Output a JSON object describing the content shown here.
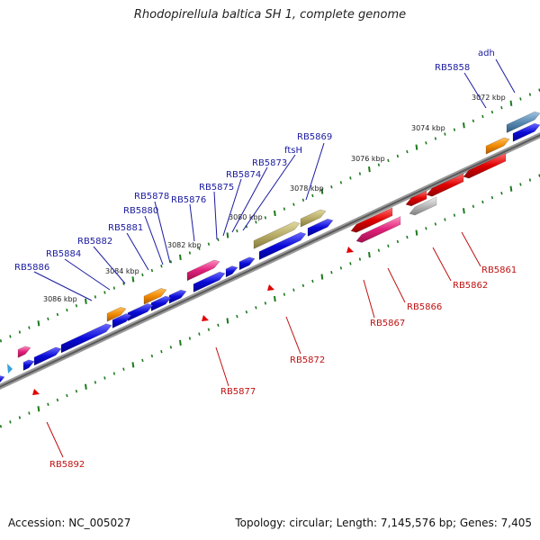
{
  "title": "Rhodopirellula baltica SH 1, complete genome",
  "footer": {
    "accession": "Accession: NC_005027",
    "summary": "Topology: circular; Length: 7,145,576 bp; Genes: 7,405"
  },
  "kbp_labels": [
    "3072 kbp",
    "3074 kbp",
    "3076 kbp",
    "3078 kbp",
    "3080 kbp",
    "3082 kbp",
    "3084 kbp",
    "3086 kbp"
  ],
  "top_labels": [
    "adh",
    "RB5858",
    "RB5869",
    "ftsH",
    "RB5873",
    "RB5874",
    "RB5875",
    "RB5876",
    "RB5878",
    "RB5880",
    "RB5881",
    "RB5882",
    "RB5884",
    "RB5886"
  ],
  "bottom_labels": [
    "RB5861",
    "RB5862",
    "RB5866",
    "RB5867",
    "RB5872",
    "RB5877",
    "RB5892"
  ],
  "colors": {
    "label_top": "#1a1aa0",
    "label_bottom": "#c01010",
    "blue_gene": "#0a0ad8",
    "red_gene": "#e00000",
    "pink_gene": "#e0207a",
    "orange_gene": "#f08a00",
    "olive_gene": "#b7ac66",
    "gray_gene": "#b8b8b8",
    "tick": "#1c7a1c",
    "backbone": "#777777"
  }
}
